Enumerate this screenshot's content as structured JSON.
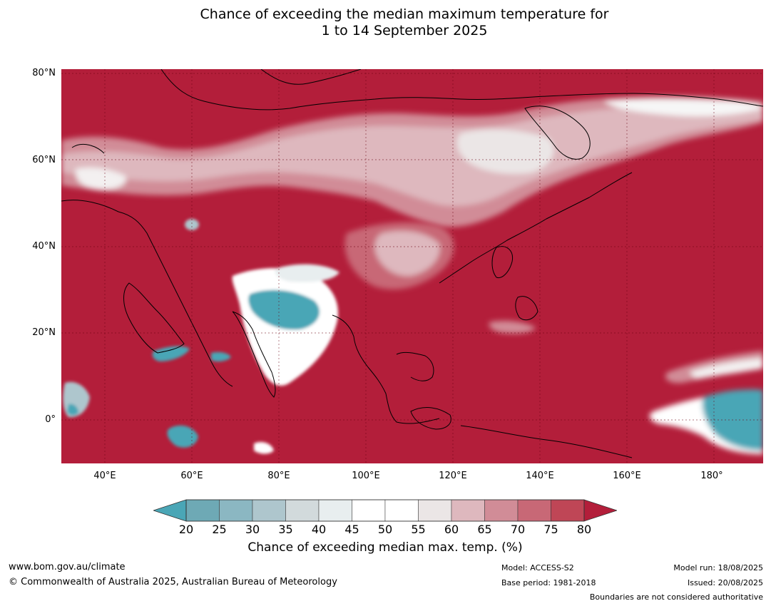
{
  "title": {
    "line1": "Chance of exceeding the median maximum temperature for",
    "line2": "1 to 14 September 2025"
  },
  "map": {
    "extent": {
      "lon_min": 30,
      "lon_max": 191,
      "lat_min": -10,
      "lat_max": 81
    },
    "lat_ticks": [
      "80°N",
      "60°N",
      "40°N",
      "20°N",
      "0°"
    ],
    "lon_ticks": [
      "40°E",
      "60°E",
      "80°E",
      "100°E",
      "120°E",
      "140°E",
      "160°E",
      "180°"
    ],
    "base_color": "#b31e3a",
    "gridlines": true
  },
  "colorbar": {
    "ticks": [
      "20",
      "25",
      "30",
      "35",
      "40",
      "45",
      "50",
      "55",
      "60",
      "65",
      "70",
      "75",
      "80"
    ],
    "colors": [
      "#4aa6b6",
      "#6ea9b5",
      "#8bb7c2",
      "#aec6cd",
      "#d2dadc",
      "#e8eeef",
      "#ffffff",
      "#ffffff",
      "#ebe6e6",
      "#deb8be",
      "#d18c97",
      "#c86876",
      "#bf4656",
      "#b31e3a"
    ],
    "label": "Chance of exceeding median max. temp. (%)"
  },
  "footer": {
    "website": "www.bom.gov.au/climate",
    "copyright": "© Commonwealth of Australia 2025, Australian Bureau of Meteorology",
    "model": "Model: ACCESS-S2",
    "base_period": "Base period: 1981-2018",
    "model_run": "Model run: 18/08/2025",
    "issued": "Issued: 20/08/2025",
    "disclaimer": "Boundaries are not considered authoritative"
  }
}
